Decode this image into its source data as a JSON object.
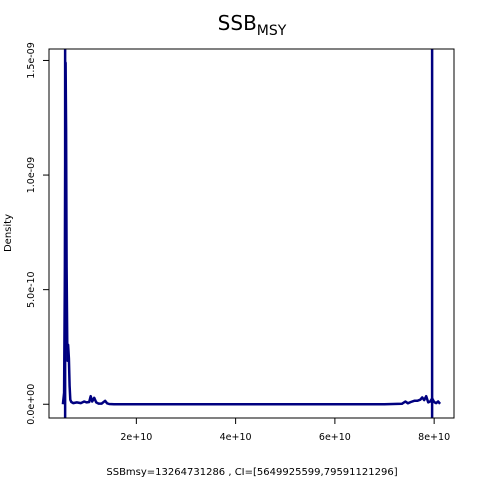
{
  "chart_data": {
    "type": "line",
    "title": "SSB",
    "title_subscript": "MSY",
    "xlabel": "SSBmsy=13264731286 , CI=[5649925599,79591121296]",
    "ylabel": "Density",
    "xlim": [
      2400000000,
      84000000000
    ],
    "ylim": [
      -6e-11,
      1.55e-09
    ],
    "x_ticks": [
      {
        "value": 20000000000,
        "label": "2e+10"
      },
      {
        "value": 40000000000,
        "label": "4e+10"
      },
      {
        "value": 60000000000,
        "label": "6e+10"
      },
      {
        "value": 80000000000,
        "label": "8e+10"
      }
    ],
    "y_ticks": [
      {
        "value": 0,
        "label": "0.0e+00"
      },
      {
        "value": 5e-10,
        "label": "5.0e-10"
      },
      {
        "value": 1e-09,
        "label": "1.0e-09"
      },
      {
        "value": 1.5e-09,
        "label": "1.5e-09"
      }
    ],
    "vertical_lines": [
      5649925599,
      79591121296
    ],
    "series": [
      {
        "color": "#000080",
        "x": [
          5200000000,
          5450000000,
          5600000000,
          5750000000,
          5850000000,
          5950000000,
          6100000000,
          6250000000,
          6400000000,
          6550000000,
          6700000000,
          6900000000,
          7300000000,
          8000000000,
          8800000000,
          9500000000,
          10000000000,
          10500000000,
          10800000000,
          11100000000,
          11500000000,
          11900000000,
          12400000000,
          13000000000,
          13700000000,
          14100000000,
          14500000000,
          15500000000,
          20000000000,
          30000000000,
          40000000000,
          50000000000,
          60000000000,
          70000000000,
          73500000000,
          74200000000,
          74700000000,
          75300000000,
          76000000000,
          76600000000,
          77200000000,
          77600000000,
          78000000000,
          78400000000,
          78800000000,
          79200000000,
          79600000000,
          80000000000,
          80400000000,
          80800000000,
          81200000000
        ],
        "y": [
          0,
          5e-11,
          6e-10,
          1.49e-09,
          1.2e-09,
          6e-10,
          1.9e-10,
          2.6e-10,
          2e-10,
          8e-11,
          2e-11,
          1e-11,
          5e-12,
          8e-12,
          5e-12,
          1.2e-11,
          8e-12,
          1e-11,
          3.5e-11,
          1.2e-11,
          2.8e-11,
          8e-12,
          3e-12,
          3e-12,
          1.5e-11,
          4e-12,
          1e-12,
          0,
          0,
          0,
          0,
          0,
          0,
          0,
          2e-12,
          1.2e-11,
          4e-12,
          1e-11,
          1.5e-11,
          1.5e-11,
          2e-11,
          3e-11,
          1.8e-11,
          3.5e-11,
          8e-12,
          1.2e-11,
          2.5e-11,
          1e-11,
          5e-12,
          1.2e-11,
          2e-12
        ]
      }
    ]
  }
}
